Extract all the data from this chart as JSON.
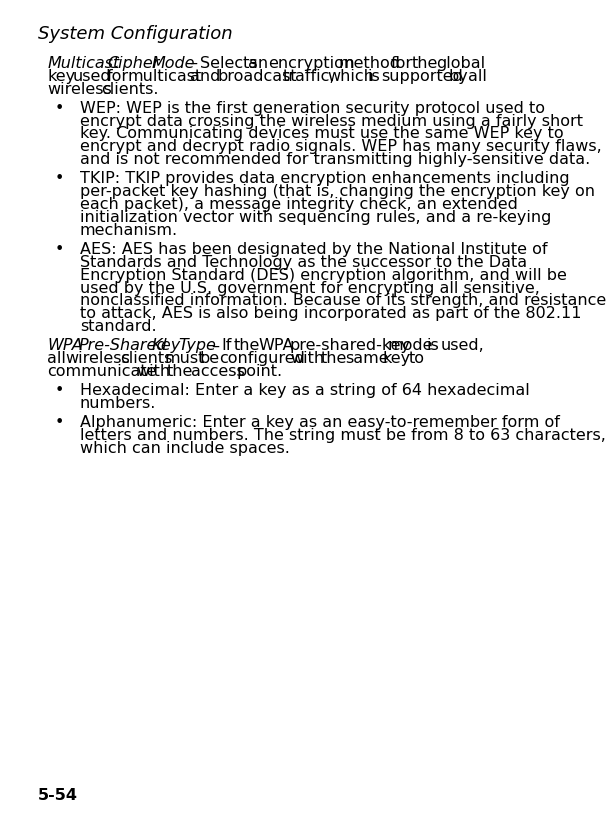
{
  "bg_color": "#ffffff",
  "header": "System Configuration",
  "page_number": "5-54",
  "font_size_header": 13,
  "font_size_body": 11.5,
  "content": [
    {
      "type": "para_italic_start",
      "italic_part": "Multicast Cipher Mode",
      "normal_part": " – Selects an encryption method for the global key used for multicast and broadcast traffic, which is supported by all wireless clients."
    },
    {
      "type": "bullet",
      "text": "WEP: WEP is the first generation security protocol used to encrypt data crossing the wireless medium using a fairly short key. Communicating devices must use the same WEP key to encrypt and decrypt radio signals. WEP has many security flaws, and is not recommended for transmitting highly-sensitive data."
    },
    {
      "type": "bullet",
      "text": "TKIP: TKIP provides data encryption enhancements including per-packet key hashing (that is, changing the encryption key on each packet), a message integrity check, an extended initialization vector with sequencing rules, and a re-keying mechanism."
    },
    {
      "type": "bullet",
      "text": "AES: AES has been designated by the National Institute of Standards and Technology as the successor to the Data Encryption Standard (DES) encryption algorithm, and will be used by the U.S. government for encrypting all sensitive, nonclassified information. Because of its strength, and resistance to attack, AES is also being incorporated as part of the 802.11 standard."
    },
    {
      "type": "para_italic_start",
      "italic_part": "WPA Pre-Shared Key Type",
      "normal_part": " – If the WPA pre-shared-key mode is used, all wireless clients must be configured with the same key to communicate with the access point."
    },
    {
      "type": "bullet",
      "text": "Hexadecimal: Enter a key as a string of 64 hexadecimal numbers."
    },
    {
      "type": "bullet",
      "text": "Alphanumeric: Enter a key as an easy-to-remember form of letters and numbers. The string must be from 8 to 63 characters, which can include spaces."
    }
  ]
}
